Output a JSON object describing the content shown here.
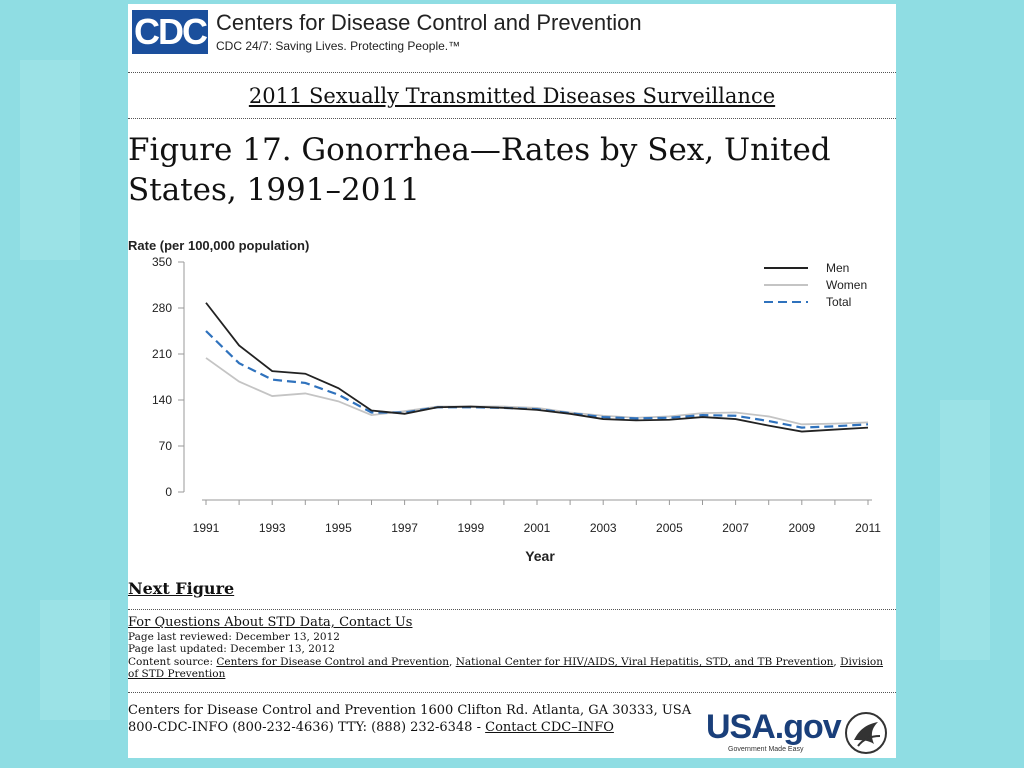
{
  "header": {
    "logo_text": "CDC",
    "org_name": "Centers for Disease Control and Prevention",
    "tagline": "CDC 24/7: Saving Lives. Protecting People.™"
  },
  "report_title": "2011 Sexually Transmitted Diseases Surveillance",
  "figure_title": "Figure 17. Gonorrhea—Rates by Sex, United States, 1991–2011",
  "chart_data": {
    "type": "line",
    "title": "Figure 17. Gonorrhea—Rates by Sex, United States, 1991–2011",
    "ylabel": "Rate (per 100,000 population)",
    "xlabel": "Year",
    "x": [
      1991,
      1992,
      1993,
      1994,
      1995,
      1996,
      1997,
      1998,
      1999,
      2000,
      2001,
      2002,
      2003,
      2004,
      2005,
      2006,
      2007,
      2008,
      2009,
      2010,
      2011
    ],
    "xticks": [
      "1991",
      "1993",
      "1995",
      "1997",
      "1999",
      "2001",
      "2003",
      "2005",
      "2007",
      "2009",
      "2011"
    ],
    "yticks": [
      "0",
      "70",
      "140",
      "210",
      "280",
      "350"
    ],
    "ylim": [
      0,
      350
    ],
    "legend_position": "top-right",
    "series": [
      {
        "name": "Men",
        "color": "#222222",
        "dash": false,
        "values": [
          288,
          223,
          184,
          180,
          158,
          124,
          119,
          129,
          130,
          128,
          125,
          119,
          111,
          109,
          110,
          114,
          111,
          101,
          92,
          95,
          98
        ]
      },
      {
        "name": "Women",
        "color": "#c4c4c4",
        "dash": false,
        "values": [
          204,
          168,
          146,
          150,
          138,
          117,
          123,
          130,
          130,
          130,
          128,
          121,
          116,
          113,
          115,
          120,
          121,
          115,
          103,
          104,
          106
        ]
      },
      {
        "name": "Total",
        "color": "#2f72bd",
        "dash": true,
        "values": [
          245,
          196,
          171,
          166,
          148,
          121,
          121,
          129,
          129,
          128,
          126,
          120,
          114,
          112,
          113,
          117,
          116,
          108,
          98,
          100,
          103
        ]
      }
    ]
  },
  "next_figure": "Next Figure",
  "questions_link": "For Questions About STD Data, Contact Us",
  "page_reviewed": "Page last reviewed: December 13, 2012",
  "page_updated": "Page last updated: December 13, 2012",
  "content_source": {
    "label": "Content source:",
    "src1": "Centers for Disease Control and Prevention",
    "src2": "National Center for HIV/AIDS, Viral Hepatitis, STD, and TB Prevention",
    "src3": "Division of STD Prevention"
  },
  "footer": {
    "address": "Centers for Disease Control and Prevention   1600 Clifton Rd. Atlanta, GA 30333, USA",
    "phone": "800-CDC-INFO (800-232-4636) TTY: (888) 232-6348 - ",
    "contact_link": "Contact CDC–INFO"
  },
  "usagov": {
    "text": "USA.gov",
    "sub": "Government Made Easy"
  },
  "colors": {
    "background": "#8fdde3",
    "cdc_blue": "#1b4f9c"
  }
}
